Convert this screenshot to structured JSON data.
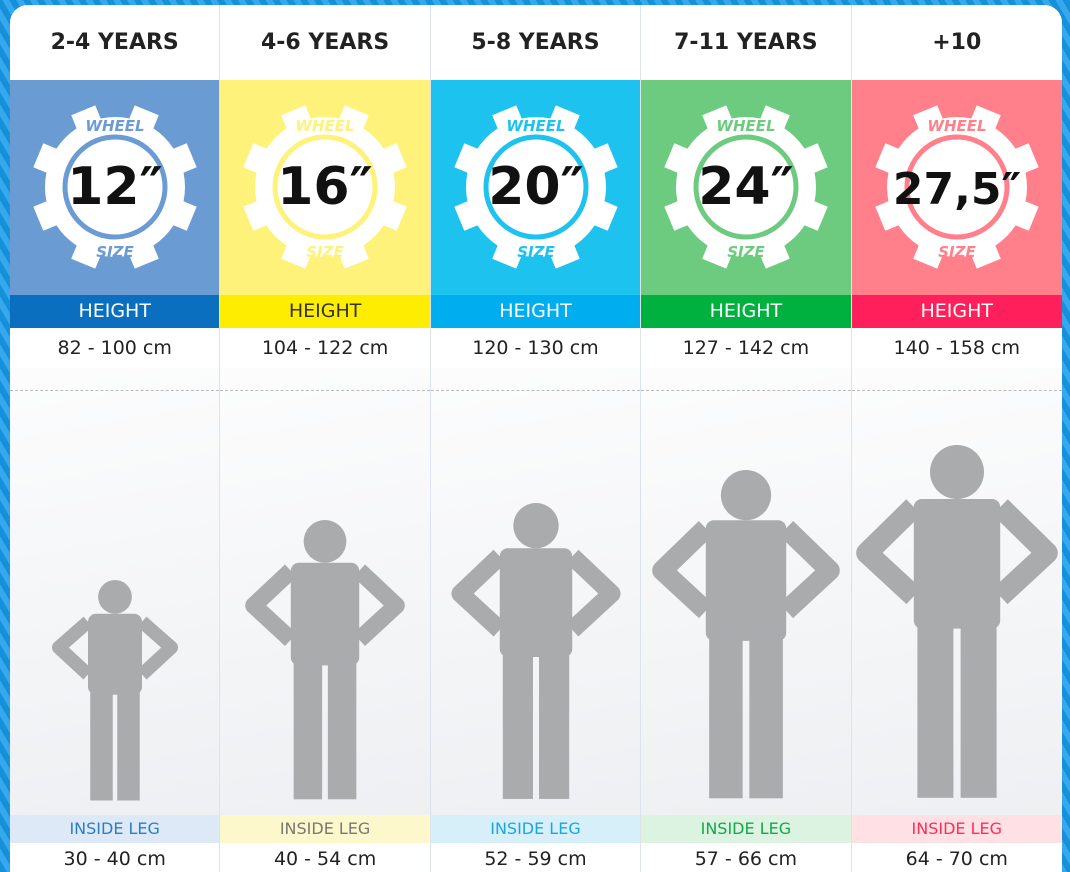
{
  "columns": [
    {
      "age": "2-4 YEARS",
      "wheel_word": "WHEEL",
      "wheel": "12″",
      "size_word": "SIZE",
      "height_label": "HEIGHT",
      "height": "82 - 100 cm",
      "leg_label": "INSIDE LEG",
      "leg": "30 - 40 cm"
    },
    {
      "age": "4-6 YEARS",
      "wheel_word": "WHEEL",
      "wheel": "16″",
      "size_word": "SIZE",
      "height_label": "HEIGHT",
      "height": "104 - 122 cm",
      "leg_label": "INSIDE LEG",
      "leg": "40 - 54 cm"
    },
    {
      "age": "5-8 YEARS",
      "wheel_word": "WHEEL",
      "wheel": "20″",
      "size_word": "SIZE",
      "height_label": "HEIGHT",
      "height": "120 - 130 cm",
      "leg_label": "INSIDE LEG",
      "leg": "52 - 59 cm"
    },
    {
      "age": "7-11 YEARS",
      "wheel_word": "WHEEL",
      "wheel": "24″",
      "size_word": "SIZE",
      "height_label": "HEIGHT",
      "height": "127 - 142 cm",
      "leg_label": "INSIDE LEG",
      "leg": "57 - 66 cm"
    },
    {
      "age": "+10",
      "wheel_word": "WHEEL",
      "wheel": "27,5″",
      "size_word": "SIZE",
      "height_label": "HEIGHT",
      "height": "140 - 158 cm",
      "leg_label": "INSIDE LEG",
      "leg": "64 - 70 cm"
    }
  ]
}
